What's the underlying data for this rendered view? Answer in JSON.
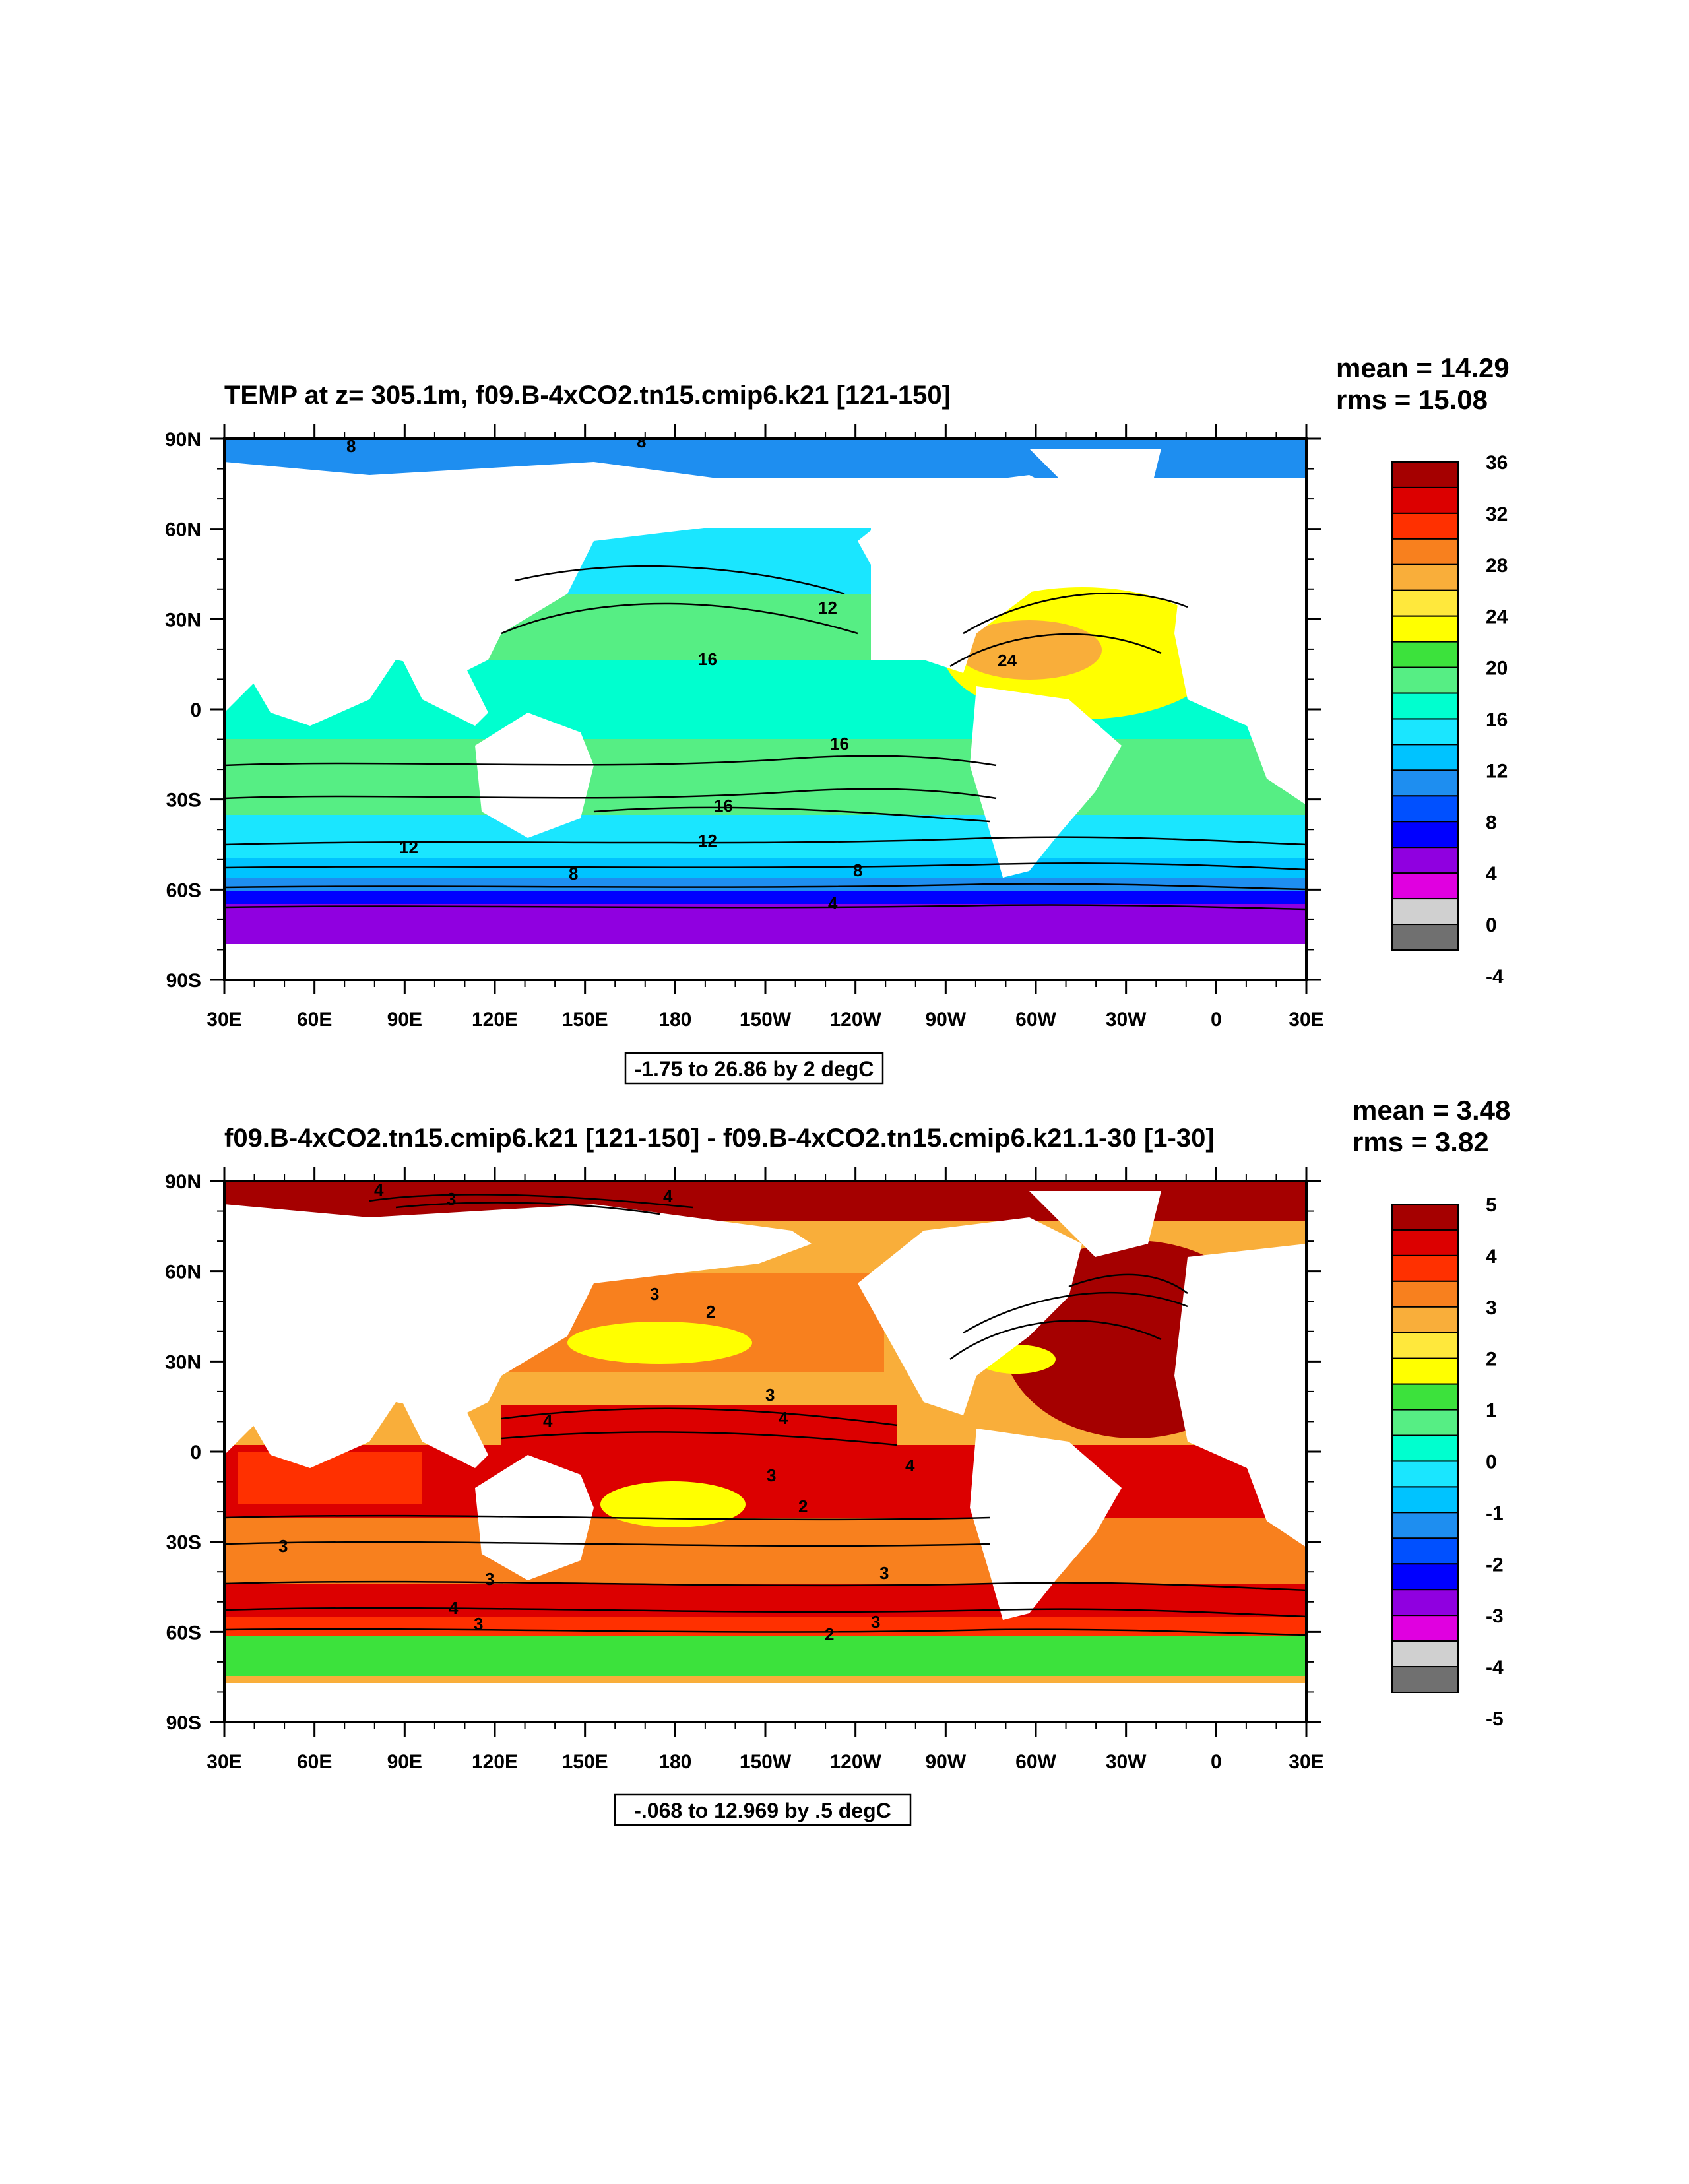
{
  "chart_data": [
    {
      "type": "heatmap",
      "title": "TEMP at z= 305.1m, f09.B-4xCO2.tn15.cmip6.k21 [121-150]",
      "stats": {
        "mean": "mean = 14.29",
        "rms": "rms = 15.08"
      },
      "x_ticks": [
        "30E",
        "60E",
        "90E",
        "120E",
        "150E",
        "180",
        "150W",
        "120W",
        "90W",
        "60W",
        "30W",
        "0",
        "30E"
      ],
      "y_ticks": [
        "90N",
        "60N",
        "30N",
        "0",
        "30S",
        "60S",
        "90S"
      ],
      "xlim": [
        30,
        390
      ],
      "ylim": [
        -90,
        90
      ],
      "colorbar": {
        "labels": [
          "36",
          "32",
          "28",
          "24",
          "20",
          "16",
          "12",
          "8",
          "4",
          "0",
          "-4"
        ],
        "colors": [
          "#a50000",
          "#dc0000",
          "#ff3000",
          "#f8801e",
          "#f9ae3a",
          "#ffe83c",
          "#ffff00",
          "#3ce23c",
          "#56ee84",
          "#00ffcf",
          "#1ae6ff",
          "#00c3ff",
          "#1e8ef0",
          "#0050ff",
          "#0000ff",
          "#9000e0",
          "#e000e0",
          "#d0d0d0",
          "#707070"
        ]
      },
      "contour_info": "-1.75 to 26.86 by 2 degC",
      "contour_labels": [
        "8",
        "8",
        "12",
        "16",
        "24",
        "16",
        "16",
        "12",
        "12",
        "8",
        "8",
        "4"
      ]
    },
    {
      "type": "heatmap",
      "title": "f09.B-4xCO2.tn15.cmip6.k21 [121-150] - f09.B-4xCO2.tn15.cmip6.k21.1-30 [1-30]",
      "stats": {
        "mean": "mean = 3.48",
        "rms": "rms = 3.82"
      },
      "x_ticks": [
        "30E",
        "60E",
        "90E",
        "120E",
        "150E",
        "180",
        "150W",
        "120W",
        "90W",
        "60W",
        "30W",
        "0",
        "30E"
      ],
      "y_ticks": [
        "90N",
        "60N",
        "30N",
        "0",
        "30S",
        "60S",
        "90S"
      ],
      "xlim": [
        30,
        390
      ],
      "ylim": [
        -90,
        90
      ],
      "colorbar": {
        "labels": [
          "5",
          "4",
          "3",
          "2",
          "1",
          "0",
          "-1",
          "-2",
          "-3",
          "-4",
          "-5"
        ],
        "colors": [
          "#a50000",
          "#dc0000",
          "#ff3000",
          "#f8801e",
          "#f9ae3a",
          "#ffe83c",
          "#ffff00",
          "#3ce23c",
          "#56ee84",
          "#00ffcf",
          "#1ae6ff",
          "#00c3ff",
          "#1e8ef0",
          "#0050ff",
          "#0000ff",
          "#9000e0",
          "#e000e0",
          "#d0d0d0",
          "#707070"
        ]
      },
      "contour_info": "-.068 to 12.969 by .5 degC",
      "contour_labels": [
        "4",
        "3",
        "4",
        "3",
        "2",
        "3",
        "4",
        "4",
        "4",
        "3",
        "3",
        "3",
        "2",
        "4",
        "3",
        "3",
        "2",
        "3"
      ]
    }
  ]
}
